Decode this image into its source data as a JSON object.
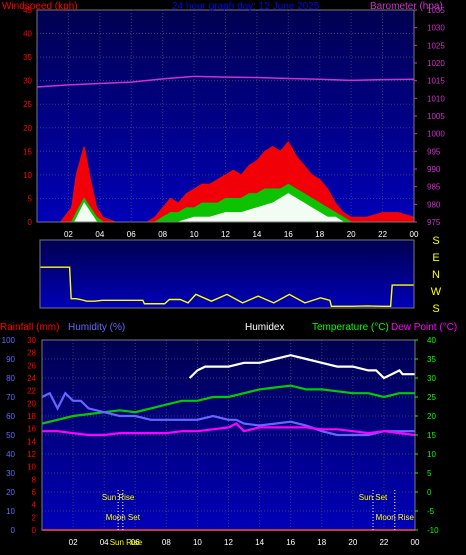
{
  "chart_data": [
    {
      "type": "line",
      "title": "24 hour graph day: 12 June 2025",
      "ylabel_left": "Windspeed (kph)",
      "ylabel_right": "Barometer (hpa)",
      "x_ticks": [
        "02",
        "04",
        "06",
        "08",
        "10",
        "12",
        "14",
        "16",
        "18",
        "20",
        "22",
        "00"
      ],
      "x_range": [
        0,
        24
      ],
      "ylim_left": [
        0,
        45
      ],
      "yticks_left": [
        0,
        5,
        10,
        15,
        20,
        25,
        30,
        35,
        40,
        45
      ],
      "ylim_right": [
        975,
        1035
      ],
      "yticks_right": [
        975,
        980,
        985,
        990,
        995,
        1000,
        1005,
        1010,
        1015,
        1020,
        1025,
        1030,
        1035
      ],
      "series": [
        {
          "axis": "right",
          "color": "#cc33cc",
          "x": [
            0,
            2,
            4,
            6,
            8,
            10,
            12,
            14,
            16,
            18,
            20,
            22,
            24
          ],
          "values": [
            1013.2,
            1013.8,
            1014.2,
            1014.6,
            1015.5,
            1016.2,
            1016.0,
            1015.9,
            1015.6,
            1015.4,
            1015.1,
            1015.3,
            1015.4
          ]
        },
        {
          "color": "#ff0000",
          "x": [
            0,
            1.5,
            2.2,
            2.5,
            3.0,
            3.4,
            3.8,
            4.2,
            5,
            6,
            7,
            7.5,
            8.0,
            8.5,
            9,
            9.5,
            10,
            10.5,
            11,
            11.5,
            12,
            12.5,
            13,
            13.5,
            14,
            14.5,
            15,
            15.5,
            16,
            16.5,
            17,
            17.5,
            18,
            18.5,
            19,
            19.5,
            20,
            21,
            22,
            23,
            24
          ],
          "values": [
            0,
            0,
            3,
            10,
            16,
            9,
            3,
            1,
            0,
            0,
            0,
            1,
            3,
            5,
            4,
            6,
            7,
            8,
            8,
            9,
            10,
            11,
            10,
            12,
            13,
            15,
            16,
            15,
            17,
            14,
            12,
            10,
            9,
            7,
            4,
            2,
            1,
            1,
            2,
            2,
            1
          ]
        },
        {
          "color": "#00cc00",
          "x": [
            0,
            2.2,
            2.5,
            3.0,
            3.4,
            3.8,
            4.2,
            7.5,
            8,
            8.5,
            9,
            9.5,
            10,
            10.5,
            11,
            11.5,
            12,
            12.5,
            13,
            13.5,
            14,
            14.5,
            15,
            15.5,
            16,
            16.5,
            17,
            17.5,
            18,
            18.5,
            19,
            19.5,
            20,
            24
          ],
          "values": [
            0,
            0,
            2,
            5,
            3,
            1,
            0,
            0,
            1,
            2,
            2,
            3,
            3,
            4,
            4,
            4,
            5,
            5,
            5,
            6,
            6,
            7,
            7,
            7,
            8,
            7,
            6,
            5,
            4,
            3,
            2,
            1,
            0,
            0
          ]
        },
        {
          "color": "#ffffff",
          "x": [
            0,
            2.4,
            3.0,
            3.4,
            3.8,
            8,
            9,
            10,
            11,
            12,
            13,
            14,
            15,
            15.5,
            16,
            16.5,
            17,
            17.5,
            18,
            18.5,
            19,
            19.5,
            20,
            24
          ],
          "values": [
            0,
            0,
            4,
            2,
            0,
            0,
            0,
            1,
            1,
            2,
            2,
            3,
            4,
            5,
            6,
            5,
            4,
            3,
            2,
            1,
            1,
            0,
            0,
            0
          ]
        }
      ]
    },
    {
      "type": "line",
      "ylabel_right": [
        "S",
        "E",
        "N",
        "W",
        "S"
      ],
      "x_range": [
        0,
        24
      ],
      "series": [
        {
          "name": "direction",
          "color": "#ffff00",
          "x": [
            0,
            1.9,
            2.0,
            2.3,
            2.6,
            3.0,
            3.5,
            4.0,
            5,
            6,
            6.6,
            6.7,
            7.2,
            7.5,
            7.6,
            8.0,
            8.3,
            9.0,
            9.5,
            10,
            11,
            12,
            13,
            14,
            15,
            16,
            17,
            18,
            18.6,
            18.7,
            20,
            21,
            22,
            22.5,
            22.6,
            24
          ],
          "values": [
            2.4,
            2.4,
            0.55,
            0.55,
            0.5,
            0.4,
            0.4,
            0.45,
            0.45,
            0.45,
            0.45,
            0.25,
            0.25,
            0.25,
            0.25,
            0.25,
            0.5,
            0.5,
            0.3,
            0.8,
            0.4,
            0.8,
            0.3,
            0.7,
            0.3,
            0.8,
            0.3,
            0.6,
            0.45,
            0.1,
            0.1,
            0.12,
            0.1,
            0.1,
            1.35,
            1.35
          ]
        }
      ]
    },
    {
      "type": "line",
      "ylabel_left_1": "Rainfall (mm)",
      "ylabel_left_2": "Humidity (%)",
      "ylabel_center": "Humidex",
      "ylabel_right_1": "Temperature (°C)",
      "ylabel_right_2": "Dew Point (°C)",
      "x_ticks": [
        "02",
        "04",
        "06",
        "08",
        "10",
        "12",
        "14",
        "16",
        "18",
        "20",
        "22",
        "00"
      ],
      "x_range": [
        0,
        24
      ],
      "ylim_humidity": [
        0,
        100
      ],
      "yticks_humidity": [
        0,
        10,
        20,
        30,
        40,
        50,
        60,
        70,
        80,
        90,
        100
      ],
      "ylim_rain": [
        0,
        30
      ],
      "yticks_rain": [
        0,
        2,
        4,
        6,
        8,
        10,
        12,
        14,
        16,
        18,
        20,
        22,
        24,
        26,
        28,
        30
      ],
      "ylim_temp": [
        -10,
        40
      ],
      "yticks_temp": [
        -10,
        -5,
        0,
        5,
        10,
        15,
        20,
        25,
        30,
        35,
        40
      ],
      "annotations": [
        {
          "text": "Sun Rise",
          "x": 4.9,
          "y": "top"
        },
        {
          "text": "Moon Set",
          "x": 5.2,
          "y": "bottom"
        },
        {
          "text": "Sun Rise",
          "x": 5.4,
          "y": "axis"
        },
        {
          "text": "Sun Set",
          "x": 21.3,
          "y": "top"
        },
        {
          "text": "Moon Rise",
          "x": 22.7,
          "y": "bottom"
        }
      ],
      "series": [
        {
          "axis": "temp",
          "color": "#ffffff",
          "name": "Humidex",
          "x": [
            9.5,
            10,
            10.5,
            11,
            12,
            13,
            14,
            15,
            16,
            17,
            18,
            19,
            20,
            21,
            21.5,
            22,
            22.5,
            23,
            23.2,
            24
          ],
          "values": [
            30,
            32,
            33,
            33,
            33,
            34,
            34,
            35,
            36,
            35,
            34,
            33,
            33,
            32,
            32,
            30,
            31,
            32,
            31,
            31
          ]
        },
        {
          "axis": "temp",
          "color": "#00cc00",
          "name": "Temperature",
          "x": [
            0,
            1,
            2,
            3,
            4,
            5,
            6,
            7,
            8,
            9,
            10,
            11,
            12,
            13,
            14,
            15,
            16,
            17,
            18,
            19,
            20,
            21,
            22,
            23,
            24
          ],
          "values": [
            18,
            19,
            20,
            20.5,
            21,
            21.5,
            21,
            22,
            23,
            24,
            24,
            25,
            25,
            26,
            27,
            27.5,
            28,
            27,
            27,
            26.5,
            26,
            26,
            25,
            26,
            26
          ]
        },
        {
          "axis": "humidity",
          "color": "#6666ff",
          "name": "Humidity",
          "x": [
            0,
            0.5,
            1,
            1.5,
            2,
            2.5,
            3,
            4,
            5,
            6,
            7,
            8,
            9,
            10,
            11,
            12,
            12.5,
            13,
            14,
            15,
            16,
            17,
            18,
            19,
            20,
            21,
            22,
            23,
            24
          ],
          "values": [
            70,
            72,
            64,
            72,
            68,
            68,
            64,
            62,
            60,
            60,
            58,
            58,
            58,
            58,
            60,
            58,
            58,
            56,
            55,
            56,
            57,
            55,
            52,
            50,
            50,
            50,
            52,
            52,
            52
          ]
        },
        {
          "axis": "temp",
          "color": "#ff00ff",
          "name": "Dew Point",
          "x": [
            0,
            1,
            2,
            3,
            4,
            5,
            6,
            7,
            8,
            9,
            10,
            11,
            12,
            12.5,
            13,
            14,
            15,
            16,
            17,
            18,
            19,
            20,
            21,
            22,
            23,
            24
          ],
          "values": [
            16,
            16,
            15.5,
            15,
            15,
            15.5,
            15.5,
            15.5,
            15.5,
            16,
            16,
            16.5,
            17,
            18,
            16,
            17,
            17,
            17,
            17,
            16.5,
            16.5,
            16,
            15.5,
            16,
            15.5,
            15
          ]
        },
        {
          "axis": "rain",
          "color": "#ff0000",
          "name": "Rainfall",
          "x": [
            0,
            24
          ],
          "values": [
            0,
            0
          ]
        }
      ]
    }
  ]
}
